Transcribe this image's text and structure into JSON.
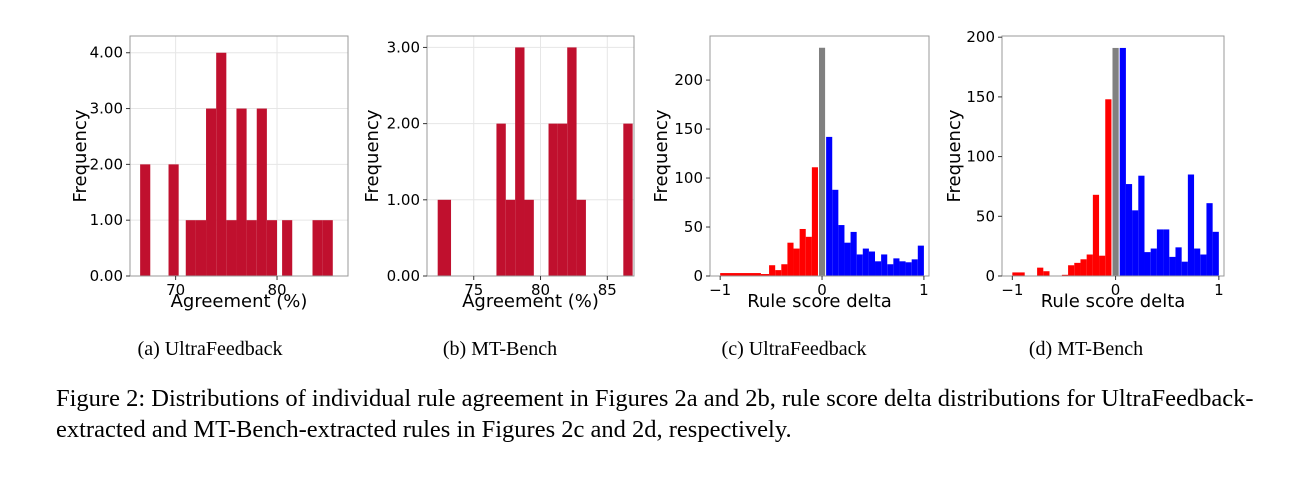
{
  "chart_data": [
    {
      "type": "bar",
      "panel": "(a) UltraFeedback",
      "caption": "(a) UltraFeedback",
      "xlabel": "Agreement (%)",
      "ylabel": "Frequency",
      "xlim": [
        65.5,
        87
      ],
      "ylim": [
        0,
        4.3
      ],
      "xticks": [
        "70",
        "80"
      ],
      "xtick_values": [
        70,
        80
      ],
      "yticks": [
        "0.00",
        "1.00",
        "2.00",
        "3.00",
        "4.00"
      ],
      "ytick_values": [
        0,
        1,
        2,
        3,
        4
      ],
      "grid": true,
      "color": "#c0102e",
      "bins": [
        {
          "x0": 66.5,
          "x1": 67.5,
          "count": 2
        },
        {
          "x0": 69.3,
          "x1": 70.3,
          "count": 2
        },
        {
          "x0": 71.0,
          "x1": 72.0,
          "count": 1
        },
        {
          "x0": 72.0,
          "x1": 73.0,
          "count": 1
        },
        {
          "x0": 73.0,
          "x1": 74.0,
          "count": 3
        },
        {
          "x0": 74.0,
          "x1": 75.0,
          "count": 4
        },
        {
          "x0": 75.0,
          "x1": 76.0,
          "count": 1
        },
        {
          "x0": 76.0,
          "x1": 77.0,
          "count": 3
        },
        {
          "x0": 77.0,
          "x1": 78.0,
          "count": 1
        },
        {
          "x0": 78.0,
          "x1": 79.0,
          "count": 3
        },
        {
          "x0": 79.0,
          "x1": 80.0,
          "count": 1
        },
        {
          "x0": 80.5,
          "x1": 81.5,
          "count": 1
        },
        {
          "x0": 83.5,
          "x1": 84.5,
          "count": 1
        },
        {
          "x0": 84.5,
          "x1": 85.5,
          "count": 1
        }
      ]
    },
    {
      "type": "bar",
      "panel": "(b) MT-Bench",
      "caption": "(b) MT-Bench",
      "xlabel": "Agreement (%)",
      "ylabel": "Frequency",
      "xlim": [
        71.5,
        87
      ],
      "ylim": [
        0,
        3.15
      ],
      "xticks": [
        "75",
        "80",
        "85"
      ],
      "xtick_values": [
        75,
        80,
        85
      ],
      "yticks": [
        "0.00",
        "1.00",
        "2.00",
        "3.00"
      ],
      "ytick_values": [
        0,
        1,
        2,
        3
      ],
      "grid": true,
      "color": "#c0102e",
      "bins": [
        {
          "x0": 72.3,
          "x1": 73.3,
          "count": 1
        },
        {
          "x0": 76.7,
          "x1": 77.4,
          "count": 2
        },
        {
          "x0": 77.4,
          "x1": 78.1,
          "count": 1
        },
        {
          "x0": 78.1,
          "x1": 78.8,
          "count": 3
        },
        {
          "x0": 78.8,
          "x1": 79.5,
          "count": 1
        },
        {
          "x0": 80.6,
          "x1": 81.3,
          "count": 2
        },
        {
          "x0": 81.3,
          "x1": 82.0,
          "count": 2
        },
        {
          "x0": 82.0,
          "x1": 82.7,
          "count": 3
        },
        {
          "x0": 82.7,
          "x1": 83.4,
          "count": 1
        },
        {
          "x0": 86.2,
          "x1": 86.9,
          "count": 2
        }
      ]
    },
    {
      "type": "bar",
      "panel": "(c) UltraFeedback",
      "caption": "(c) UltraFeedback",
      "xlabel": "Rule score delta",
      "ylabel": "Frequency",
      "xlim": [
        -1.1,
        1.05
      ],
      "ylim": [
        0,
        245
      ],
      "xticks": [
        "−1",
        "0",
        "1"
      ],
      "xtick_values": [
        -1,
        0,
        1
      ],
      "yticks": [
        "0",
        "50",
        "100",
        "150",
        "200"
      ],
      "ytick_values": [
        0,
        50,
        100,
        150,
        200
      ],
      "grid": false,
      "series": [
        {
          "color": "#ff0000",
          "bins": [
            {
              "x0": -1.0,
              "x1": -0.6,
              "count": 3
            },
            {
              "x0": -0.6,
              "x1": -0.52,
              "count": 2
            },
            {
              "x0": -0.52,
              "x1": -0.46,
              "count": 11
            },
            {
              "x0": -0.46,
              "x1": -0.4,
              "count": 6
            },
            {
              "x0": -0.4,
              "x1": -0.34,
              "count": 12
            },
            {
              "x0": -0.34,
              "x1": -0.28,
              "count": 34
            },
            {
              "x0": -0.28,
              "x1": -0.22,
              "count": 28
            },
            {
              "x0": -0.22,
              "x1": -0.16,
              "count": 48
            },
            {
              "x0": -0.16,
              "x1": -0.1,
              "count": 40
            },
            {
              "x0": -0.1,
              "x1": -0.04,
              "count": 111
            }
          ]
        },
        {
          "color": "#808080",
          "bins": [
            {
              "x0": -0.03,
              "x1": 0.03,
              "count": 233
            }
          ]
        },
        {
          "color": "#0000ff",
          "bins": [
            {
              "x0": 0.04,
              "x1": 0.1,
              "count": 142
            },
            {
              "x0": 0.1,
              "x1": 0.16,
              "count": 88
            },
            {
              "x0": 0.16,
              "x1": 0.22,
              "count": 52
            },
            {
              "x0": 0.22,
              "x1": 0.28,
              "count": 34
            },
            {
              "x0": 0.28,
              "x1": 0.34,
              "count": 45
            },
            {
              "x0": 0.34,
              "x1": 0.4,
              "count": 22
            },
            {
              "x0": 0.4,
              "x1": 0.46,
              "count": 28
            },
            {
              "x0": 0.46,
              "x1": 0.52,
              "count": 25
            },
            {
              "x0": 0.52,
              "x1": 0.58,
              "count": 15
            },
            {
              "x0": 0.58,
              "x1": 0.64,
              "count": 22
            },
            {
              "x0": 0.64,
              "x1": 0.7,
              "count": 12
            },
            {
              "x0": 0.7,
              "x1": 0.76,
              "count": 18
            },
            {
              "x0": 0.76,
              "x1": 0.82,
              "count": 15
            },
            {
              "x0": 0.82,
              "x1": 0.88,
              "count": 14
            },
            {
              "x0": 0.88,
              "x1": 0.94,
              "count": 17
            },
            {
              "x0": 0.94,
              "x1": 1.0,
              "count": 31
            }
          ]
        }
      ]
    },
    {
      "type": "bar",
      "panel": "(d) MT-Bench",
      "caption": "(d) MT-Bench",
      "xlabel": "Rule score delta",
      "ylabel": "Frequency",
      "xlim": [
        -1.1,
        1.05
      ],
      "ylim": [
        0,
        201
      ],
      "xticks": [
        "−1",
        "0",
        "1"
      ],
      "xtick_values": [
        -1,
        0,
        1
      ],
      "yticks": [
        "0",
        "50",
        "100",
        "150",
        "200"
      ],
      "ytick_values": [
        0,
        50,
        100,
        150,
        200
      ],
      "grid": false,
      "series": [
        {
          "color": "#ff0000",
          "bins": [
            {
              "x0": -1.0,
              "x1": -0.88,
              "count": 3
            },
            {
              "x0": -0.76,
              "x1": -0.7,
              "count": 7
            },
            {
              "x0": -0.7,
              "x1": -0.64,
              "count": 4
            },
            {
              "x0": -0.52,
              "x1": -0.46,
              "count": 1
            },
            {
              "x0": -0.46,
              "x1": -0.4,
              "count": 9
            },
            {
              "x0": -0.4,
              "x1": -0.34,
              "count": 11
            },
            {
              "x0": -0.34,
              "x1": -0.28,
              "count": 14
            },
            {
              "x0": -0.28,
              "x1": -0.22,
              "count": 18
            },
            {
              "x0": -0.22,
              "x1": -0.16,
              "count": 68
            },
            {
              "x0": -0.16,
              "x1": -0.1,
              "count": 17
            },
            {
              "x0": -0.1,
              "x1": -0.04,
              "count": 148
            }
          ]
        },
        {
          "color": "#808080",
          "bins": [
            {
              "x0": -0.03,
              "x1": 0.03,
              "count": 191
            }
          ]
        },
        {
          "color": "#0000ff",
          "bins": [
            {
              "x0": 0.04,
              "x1": 0.1,
              "count": 191
            },
            {
              "x0": 0.1,
              "x1": 0.16,
              "count": 77
            },
            {
              "x0": 0.16,
              "x1": 0.22,
              "count": 55
            },
            {
              "x0": 0.22,
              "x1": 0.28,
              "count": 84
            },
            {
              "x0": 0.28,
              "x1": 0.34,
              "count": 20
            },
            {
              "x0": 0.34,
              "x1": 0.4,
              "count": 23
            },
            {
              "x0": 0.4,
              "x1": 0.46,
              "count": 39
            },
            {
              "x0": 0.46,
              "x1": 0.52,
              "count": 39
            },
            {
              "x0": 0.52,
              "x1": 0.58,
              "count": 16
            },
            {
              "x0": 0.58,
              "x1": 0.64,
              "count": 24
            },
            {
              "x0": 0.64,
              "x1": 0.7,
              "count": 12
            },
            {
              "x0": 0.7,
              "x1": 0.76,
              "count": 85
            },
            {
              "x0": 0.76,
              "x1": 0.82,
              "count": 23
            },
            {
              "x0": 0.82,
              "x1": 0.88,
              "count": 18
            },
            {
              "x0": 0.88,
              "x1": 0.94,
              "count": 61
            },
            {
              "x0": 0.94,
              "x1": 1.0,
              "count": 37
            }
          ]
        }
      ]
    }
  ],
  "figure_caption": "Figure 2: Distributions of individual rule agreement in Figures 2a and 2b, rule score delta distributions for UltraFeedback-extracted and MT-Bench-extracted rules in Figures 2c and 2d, respectively."
}
